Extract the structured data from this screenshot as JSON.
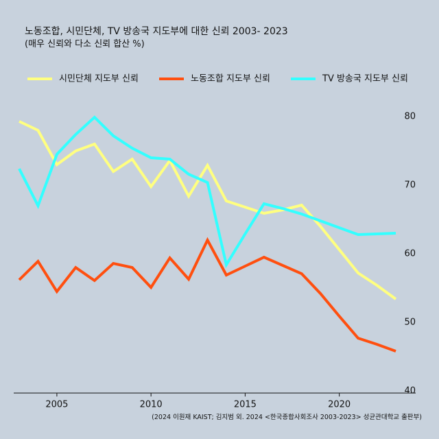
{
  "chart_data": {
    "type": "line",
    "title": "노동조합, 시민단체, TV 방송국 지도부에 대한 신뢰 2003- 2023",
    "subtitle": "(매우 신뢰와 다소 신뢰 합산 %)",
    "source": "(2024 이원재 KAIST; 김지범 외. 2024 <한국종합사회조사 2003-2023> 성균관대학교 출판부)",
    "x": [
      2003,
      2004,
      2005,
      2006,
      2007,
      2008,
      2009,
      2010,
      2011,
      2012,
      2013,
      2014,
      2015,
      2016,
      2017,
      2018,
      2019,
      2020,
      2021,
      2022,
      2023
    ],
    "series": [
      {
        "name": "시민단체 지도부 신뢰",
        "color": "#ffff80",
        "values": [
          79.3,
          78,
          73,
          75,
          76,
          72,
          73.8,
          69.8,
          73.6,
          68.4,
          72.9,
          67.7,
          66.8,
          65.9,
          66.4,
          67.1,
          64,
          60.6,
          57.2,
          55.4,
          53.4
        ]
      },
      {
        "name": "노동조합 지도부 신뢰",
        "color": "#ff4f0f",
        "values": [
          56.2,
          58.9,
          54.5,
          58,
          56.1,
          58.6,
          58,
          55.1,
          59.4,
          56.3,
          62,
          56.9,
          58.2,
          59.5,
          58.3,
          57.1,
          54.2,
          50.9,
          47.7,
          46.8,
          45.8
        ]
      },
      {
        "name": "TV 방송국 지도부 신뢰",
        "color": "#33ffff",
        "values": [
          72.4,
          67,
          74.5,
          77.4,
          79.9,
          77.2,
          75.4,
          74,
          73.8,
          71.6,
          70.4,
          58.4,
          62.9,
          67.3,
          66.6,
          65.8,
          64.8,
          63.8,
          62.8,
          62.9,
          63
        ]
      }
    ],
    "xlim": [
      2003,
      2023
    ],
    "xticks": [
      2005,
      2010,
      2015,
      2020
    ],
    "ylim": [
      40,
      80
    ],
    "yticks": [
      40,
      50,
      60,
      70,
      80
    ],
    "y_axis_side": "right",
    "grid": false
  }
}
